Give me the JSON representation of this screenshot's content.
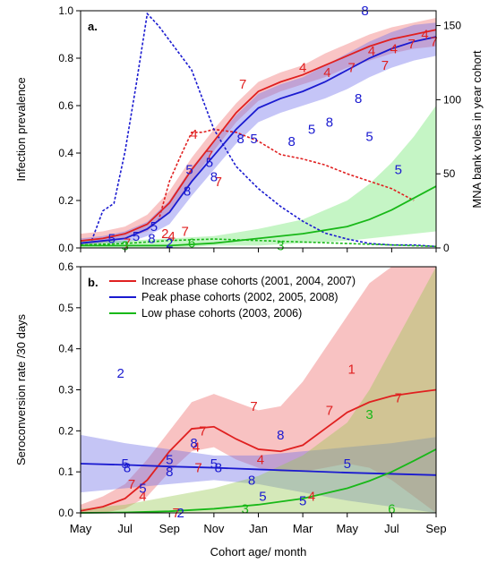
{
  "chart_data": [
    {
      "panel_label": "a.",
      "type": "line",
      "x_ticks": [
        "May",
        "Jul",
        "Sep",
        "Nov",
        "Jan",
        "Mar",
        "May",
        "Jul",
        "Sep"
      ],
      "ylabel": "Infection prevalence",
      "ylim": [
        0,
        1.0
      ],
      "y_ticks": [
        0.0,
        0.2,
        0.4,
        0.6,
        0.8,
        1.0
      ],
      "y2label": "MNA bank voles in year cohort",
      "y2lim": [
        0,
        160
      ],
      "y2_ticks": [
        0,
        50,
        100,
        150
      ],
      "xlim": [
        0,
        16
      ],
      "series": [
        {
          "color": "#e02020",
          "fit_x": [
            0,
            1,
            2,
            3,
            4,
            5,
            6,
            7,
            8,
            9,
            10,
            11,
            12,
            13,
            14,
            15,
            16
          ],
          "fit_y": [
            0.03,
            0.04,
            0.06,
            0.1,
            0.19,
            0.33,
            0.45,
            0.57,
            0.66,
            0.7,
            0.73,
            0.77,
            0.81,
            0.85,
            0.88,
            0.9,
            0.92
          ],
          "band_lo": [
            0.01,
            0.02,
            0.04,
            0.07,
            0.15,
            0.28,
            0.41,
            0.53,
            0.62,
            0.66,
            0.69,
            0.72,
            0.76,
            0.79,
            0.82,
            0.84,
            0.85
          ],
          "band_hi": [
            0.06,
            0.07,
            0.09,
            0.14,
            0.24,
            0.38,
            0.5,
            0.61,
            0.7,
            0.74,
            0.77,
            0.82,
            0.86,
            0.9,
            0.93,
            0.95,
            0.97
          ],
          "points": [
            {
              "x": 2.1,
              "y": 0.02,
              "label": "7"
            },
            {
              "x": 3.8,
              "y": 0.06,
              "label": "2"
            },
            {
              "x": 4.1,
              "y": 0.05,
              "label": "4"
            },
            {
              "x": 4.7,
              "y": 0.07,
              "label": "7"
            },
            {
              "x": 5.1,
              "y": 0.48,
              "label": "4"
            },
            {
              "x": 5.8,
              "y": 0.39,
              "label": "7"
            },
            {
              "x": 6.2,
              "y": 0.28,
              "label": "7"
            },
            {
              "x": 7.3,
              "y": 0.69,
              "label": "7"
            },
            {
              "x": 10.0,
              "y": 0.76,
              "label": "4"
            },
            {
              "x": 11.1,
              "y": 0.74,
              "label": "4"
            },
            {
              "x": 12.2,
              "y": 0.76,
              "label": "7"
            },
            {
              "x": 13.1,
              "y": 0.83,
              "label": "4"
            },
            {
              "x": 13.7,
              "y": 0.77,
              "label": "7"
            },
            {
              "x": 14.1,
              "y": 0.84,
              "label": "4"
            },
            {
              "x": 14.9,
              "y": 0.86,
              "label": "7"
            },
            {
              "x": 15.5,
              "y": 0.9,
              "label": "4"
            },
            {
              "x": 15.9,
              "y": 0.87,
              "label": "7"
            }
          ],
          "mna_x": [
            3.5,
            4.0,
            4.5,
            5.0,
            5.5,
            6.0,
            7.0,
            8.0,
            9.0,
            10.0,
            11.0,
            12.0,
            13.0,
            14.0,
            15.0
          ],
          "mna_y": [
            18,
            45,
            62,
            78,
            78,
            80,
            78,
            72,
            63,
            60,
            56,
            50,
            45,
            40,
            32
          ]
        },
        {
          "color": "#1a1ad0",
          "fit_x": [
            0,
            1,
            2,
            3,
            4,
            5,
            6,
            7,
            8,
            9,
            10,
            11,
            12,
            13,
            14,
            15,
            16
          ],
          "fit_y": [
            0.02,
            0.03,
            0.04,
            0.08,
            0.15,
            0.28,
            0.39,
            0.5,
            0.59,
            0.63,
            0.66,
            0.7,
            0.75,
            0.8,
            0.84,
            0.87,
            0.89
          ],
          "band_lo": [
            0.01,
            0.02,
            0.02,
            0.05,
            0.1,
            0.22,
            0.33,
            0.44,
            0.53,
            0.57,
            0.6,
            0.63,
            0.67,
            0.72,
            0.76,
            0.79,
            0.81
          ],
          "band_hi": [
            0.04,
            0.05,
            0.07,
            0.11,
            0.2,
            0.34,
            0.45,
            0.56,
            0.65,
            0.69,
            0.72,
            0.77,
            0.82,
            0.87,
            0.91,
            0.94,
            0.95
          ],
          "points": [
            {
              "x": 1.4,
              "y": 0.04,
              "label": "5"
            },
            {
              "x": 2.5,
              "y": 0.05,
              "label": "5"
            },
            {
              "x": 3.2,
              "y": 0.04,
              "label": "8"
            },
            {
              "x": 3.3,
              "y": 0.09,
              "label": "5"
            },
            {
              "x": 4.0,
              "y": 0.02,
              "label": "2"
            },
            {
              "x": 4.8,
              "y": 0.24,
              "label": "8"
            },
            {
              "x": 4.9,
              "y": 0.33,
              "label": "5"
            },
            {
              "x": 5.8,
              "y": 0.36,
              "label": "5"
            },
            {
              "x": 6.0,
              "y": 0.3,
              "label": "8"
            },
            {
              "x": 7.2,
              "y": 0.46,
              "label": "8"
            },
            {
              "x": 7.8,
              "y": 0.46,
              "label": "5"
            },
            {
              "x": 9.5,
              "y": 0.45,
              "label": "8"
            },
            {
              "x": 10.4,
              "y": 0.5,
              "label": "5"
            },
            {
              "x": 11.2,
              "y": 0.53,
              "label": "8"
            },
            {
              "x": 12.5,
              "y": 0.63,
              "label": "8"
            },
            {
              "x": 13.0,
              "y": 0.47,
              "label": "5"
            },
            {
              "x": 14.3,
              "y": 0.33,
              "label": "5"
            },
            {
              "x": 12.8,
              "y": 1.0,
              "label": "8"
            }
          ],
          "mna_x": [
            0.5,
            1.0,
            1.5,
            2.0,
            2.5,
            3.0,
            3.5,
            4.0,
            4.5,
            5.0,
            5.5,
            6.0,
            7.0,
            8.0,
            9.0,
            10.0,
            11.0,
            12.0,
            13.0,
            14.0,
            15.0,
            16.0
          ],
          "mna_y": [
            5,
            25,
            30,
            65,
            110,
            158,
            150,
            140,
            130,
            120,
            100,
            80,
            55,
            40,
            28,
            18,
            10,
            6,
            3,
            2,
            2,
            1
          ]
        },
        {
          "color": "#18b818",
          "fit_x": [
            0,
            2,
            4,
            6,
            8,
            10,
            12,
            13,
            14,
            15,
            16
          ],
          "fit_y": [
            0.01,
            0.01,
            0.01,
            0.02,
            0.04,
            0.06,
            0.09,
            0.12,
            0.16,
            0.21,
            0.26
          ],
          "band_lo": [
            0.0,
            0.0,
            0.0,
            0.01,
            0.01,
            0.02,
            0.03,
            0.04,
            0.05,
            0.06,
            0.07
          ],
          "band_hi": [
            0.03,
            0.03,
            0.04,
            0.05,
            0.08,
            0.12,
            0.2,
            0.27,
            0.36,
            0.47,
            0.6
          ],
          "points": [
            {
              "x": 2.0,
              "y": 0.01,
              "label": "3"
            },
            {
              "x": 5.0,
              "y": 0.02,
              "label": "6"
            },
            {
              "x": 9.0,
              "y": 0.01,
              "label": "3"
            }
          ],
          "mna_x": [
            0,
            2,
            4,
            6,
            8,
            10,
            12,
            14,
            16
          ],
          "mna_y": [
            2,
            3,
            5,
            6,
            5,
            4,
            3,
            2,
            1
          ]
        }
      ]
    },
    {
      "panel_label": "b.",
      "type": "line",
      "x_ticks": [
        "May",
        "Jul",
        "Sep",
        "Nov",
        "Jan",
        "Mar",
        "May",
        "Jul",
        "Sep"
      ],
      "xlabel": "Cohort age/ month",
      "ylabel": "Seroconversion rate /30 days",
      "ylim": [
        0,
        0.6
      ],
      "y_ticks": [
        0.0,
        0.1,
        0.2,
        0.3,
        0.4,
        0.5,
        0.6
      ],
      "xlim": [
        0,
        16
      ],
      "legend": "top-left",
      "series": [
        {
          "name": "Increase phase cohorts (2001, 2004, 2007)",
          "color": "#e02020",
          "fit_x": [
            0,
            1,
            2,
            3,
            4,
            5,
            6,
            7,
            8,
            9,
            10,
            11,
            12,
            13,
            14,
            15,
            16
          ],
          "fit_y": [
            0.005,
            0.015,
            0.035,
            0.08,
            0.15,
            0.205,
            0.21,
            0.18,
            0.155,
            0.15,
            0.165,
            0.205,
            0.245,
            0.27,
            0.285,
            0.293,
            0.3
          ],
          "band_lo": [
            0.0,
            0.0,
            0.01,
            0.04,
            0.1,
            0.15,
            0.16,
            0.13,
            0.11,
            0.1,
            0.1,
            0.11,
            0.12,
            0.11,
            0.08,
            0.04,
            0.0
          ],
          "band_hi": [
            0.02,
            0.04,
            0.07,
            0.13,
            0.2,
            0.27,
            0.29,
            0.27,
            0.25,
            0.26,
            0.32,
            0.4,
            0.48,
            0.56,
            0.6,
            0.6,
            0.6
          ],
          "points": [
            {
              "x": 2.3,
              "y": 0.07,
              "label": "7"
            },
            {
              "x": 2.8,
              "y": 0.04,
              "label": "4"
            },
            {
              "x": 4.3,
              "y": 0.0,
              "label": "7"
            },
            {
              "x": 5.2,
              "y": 0.16,
              "label": "4"
            },
            {
              "x": 5.3,
              "y": 0.11,
              "label": "7"
            },
            {
              "x": 5.5,
              "y": 0.2,
              "label": "7"
            },
            {
              "x": 7.8,
              "y": 0.26,
              "label": "7"
            },
            {
              "x": 8.1,
              "y": 0.13,
              "label": "4"
            },
            {
              "x": 11.2,
              "y": 0.25,
              "label": "7"
            },
            {
              "x": 10.4,
              "y": 0.04,
              "label": "4"
            },
            {
              "x": 14.3,
              "y": 0.28,
              "label": "7"
            },
            {
              "x": 12.2,
              "y": 0.35,
              "label": "1"
            }
          ]
        },
        {
          "name": "Peak phase cohorts (2002, 2005, 2008)",
          "color": "#1a1ad0",
          "fit_x": [
            0,
            2,
            4,
            6,
            8,
            10,
            12,
            14,
            16
          ],
          "fit_y": [
            0.12,
            0.117,
            0.113,
            0.11,
            0.106,
            0.102,
            0.098,
            0.095,
            0.092
          ],
          "band_lo": [
            0.05,
            0.06,
            0.07,
            0.08,
            0.07,
            0.05,
            0.03,
            0.015,
            0.0
          ],
          "band_hi": [
            0.19,
            0.17,
            0.155,
            0.14,
            0.14,
            0.15,
            0.16,
            0.17,
            0.185
          ],
          "points": [
            {
              "x": 2.0,
              "y": 0.12,
              "label": "5"
            },
            {
              "x": 2.1,
              "y": 0.11,
              "label": "8"
            },
            {
              "x": 2.8,
              "y": 0.06,
              "label": "5"
            },
            {
              "x": 4.0,
              "y": 0.13,
              "label": "5"
            },
            {
              "x": 4.0,
              "y": 0.1,
              "label": "8"
            },
            {
              "x": 5.1,
              "y": 0.17,
              "label": "8"
            },
            {
              "x": 6.0,
              "y": 0.12,
              "label": "5"
            },
            {
              "x": 6.2,
              "y": 0.11,
              "label": "8"
            },
            {
              "x": 7.7,
              "y": 0.08,
              "label": "8"
            },
            {
              "x": 8.2,
              "y": 0.04,
              "label": "5"
            },
            {
              "x": 9.0,
              "y": 0.19,
              "label": "8"
            },
            {
              "x": 10.0,
              "y": 0.03,
              "label": "5"
            },
            {
              "x": 12.0,
              "y": 0.12,
              "label": "5"
            },
            {
              "x": 1.8,
              "y": 0.34,
              "label": "2"
            },
            {
              "x": 4.5,
              "y": 0.0,
              "label": "2"
            }
          ]
        },
        {
          "name": "Low phase cohorts (2003, 2006)",
          "color": "#18b818",
          "fit_x": [
            0,
            2,
            4,
            6,
            8,
            10,
            12,
            13,
            14,
            15,
            16
          ],
          "fit_y": [
            0.0,
            0.001,
            0.004,
            0.01,
            0.02,
            0.035,
            0.06,
            0.078,
            0.1,
            0.127,
            0.155
          ],
          "band_lo": [
            0.0,
            0.0,
            0.0,
            0.0,
            0.0,
            0.0,
            0.0,
            0.0,
            0.0,
            0.0,
            0.0
          ],
          "band_hi": [
            0.01,
            0.02,
            0.04,
            0.06,
            0.09,
            0.14,
            0.22,
            0.3,
            0.4,
            0.5,
            0.6
          ],
          "points": [
            {
              "x": 7.4,
              "y": 0.01,
              "label": "3"
            },
            {
              "x": 13.0,
              "y": 0.24,
              "label": "3"
            },
            {
              "x": 14.0,
              "y": 0.01,
              "label": "6"
            }
          ]
        }
      ]
    }
  ]
}
